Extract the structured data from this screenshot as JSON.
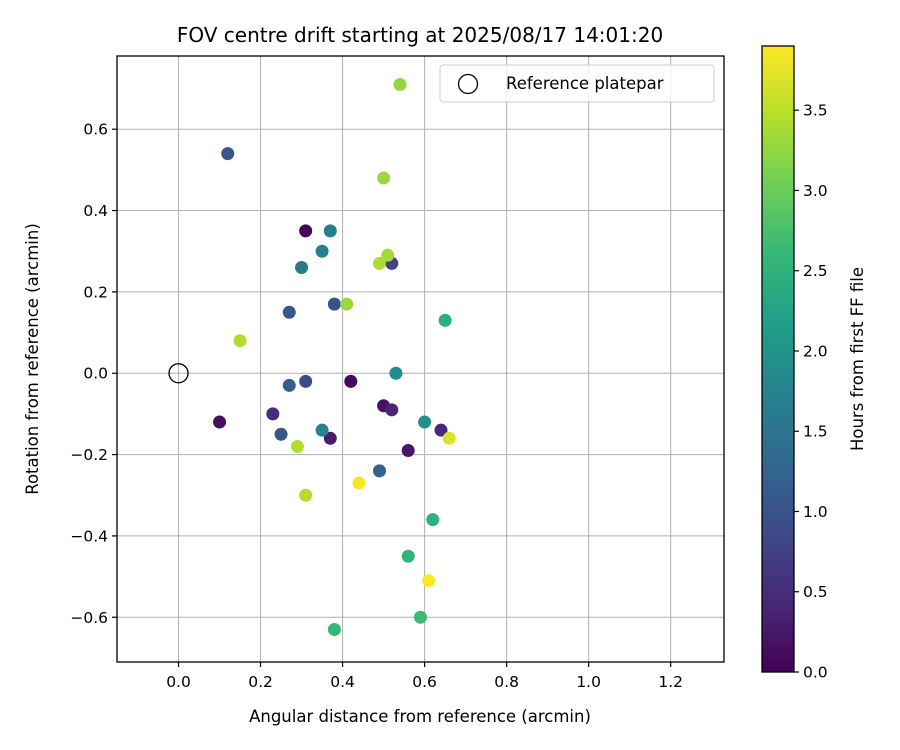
{
  "chart_data": {
    "type": "scatter",
    "title": "FOV centre drift starting at 2025/08/17 14:01:20",
    "xlabel": "Angular distance from reference (arcmin)",
    "ylabel": "Rotation from reference (arcmin)",
    "xlim": [
      -0.15,
      1.33
    ],
    "ylim": [
      -0.71,
      0.78
    ],
    "x_ticks": [
      0.0,
      0.2,
      0.4,
      0.6,
      0.8,
      1.0,
      1.2
    ],
    "x_tick_labels": [
      "0.0",
      "0.2",
      "0.4",
      "0.6",
      "0.8",
      "1.0",
      "1.2"
    ],
    "y_ticks": [
      -0.6,
      -0.4,
      -0.2,
      0.0,
      0.2,
      0.4,
      0.6
    ],
    "y_tick_labels": [
      "−0.6",
      "−0.4",
      "−0.2",
      "0.0",
      "0.2",
      "0.4",
      "0.6"
    ],
    "grid": true,
    "legend": {
      "position": "upper-right",
      "entries": [
        "Reference platepar"
      ]
    },
    "reference_point": {
      "x": 0.0,
      "y": 0.0,
      "label": "Reference platepar"
    },
    "colorbar": {
      "label": "Hours from first FF file",
      "colormap": "viridis",
      "range": [
        0.0,
        3.9
      ],
      "ticks": [
        0.0,
        0.5,
        1.0,
        1.5,
        2.0,
        2.5,
        3.0,
        3.5
      ],
      "tick_labels": [
        "0.0",
        "0.5",
        "1.0",
        "1.5",
        "2.0",
        "2.5",
        "3.0",
        "3.5"
      ]
    },
    "points": [
      {
        "x": 0.31,
        "y": 0.35,
        "hours": 0.05
      },
      {
        "x": 0.42,
        "y": -0.02,
        "hours": 0.1
      },
      {
        "x": 0.1,
        "y": -0.12,
        "hours": 0.15
      },
      {
        "x": 0.5,
        "y": -0.08,
        "hours": 0.2
      },
      {
        "x": 0.56,
        "y": -0.19,
        "hours": 0.25
      },
      {
        "x": 0.37,
        "y": -0.16,
        "hours": 0.3
      },
      {
        "x": 0.52,
        "y": -0.09,
        "hours": 0.4
      },
      {
        "x": 0.64,
        "y": -0.14,
        "hours": 0.45
      },
      {
        "x": 0.23,
        "y": -0.1,
        "hours": 0.5
      },
      {
        "x": 0.52,
        "y": 0.27,
        "hours": 0.8
      },
      {
        "x": 0.31,
        "y": -0.02,
        "hours": 0.9
      },
      {
        "x": 0.38,
        "y": 0.17,
        "hours": 0.95
      },
      {
        "x": 0.12,
        "y": 0.54,
        "hours": 1.0
      },
      {
        "x": 0.25,
        "y": -0.15,
        "hours": 1.05
      },
      {
        "x": 0.27,
        "y": 0.15,
        "hours": 1.1
      },
      {
        "x": 0.27,
        "y": -0.03,
        "hours": 1.15
      },
      {
        "x": 0.49,
        "y": -0.24,
        "hours": 1.2
      },
      {
        "x": 0.3,
        "y": 0.26,
        "hours": 1.6
      },
      {
        "x": 0.37,
        "y": 0.35,
        "hours": 1.65
      },
      {
        "x": 0.35,
        "y": 0.3,
        "hours": 1.7
      },
      {
        "x": 0.35,
        "y": -0.14,
        "hours": 1.75
      },
      {
        "x": 0.53,
        "y": 0.0,
        "hours": 1.85
      },
      {
        "x": 0.6,
        "y": -0.12,
        "hours": 1.95
      },
      {
        "x": 0.65,
        "y": 0.13,
        "hours": 2.45
      },
      {
        "x": 0.62,
        "y": -0.36,
        "hours": 2.5
      },
      {
        "x": 0.56,
        "y": -0.45,
        "hours": 2.55
      },
      {
        "x": 0.38,
        "y": -0.63,
        "hours": 2.6
      },
      {
        "x": 0.59,
        "y": -0.6,
        "hours": 2.65
      },
      {
        "x": 0.54,
        "y": 0.71,
        "hours": 3.25
      },
      {
        "x": 0.5,
        "y": 0.48,
        "hours": 3.3
      },
      {
        "x": 0.51,
        "y": 0.29,
        "hours": 3.35
      },
      {
        "x": 0.49,
        "y": 0.27,
        "hours": 3.4
      },
      {
        "x": 0.41,
        "y": 0.17,
        "hours": 3.3
      },
      {
        "x": 0.15,
        "y": 0.08,
        "hours": 3.45
      },
      {
        "x": 0.29,
        "y": -0.18,
        "hours": 3.45
      },
      {
        "x": 0.31,
        "y": -0.3,
        "hours": 3.45
      },
      {
        "x": 0.66,
        "y": -0.16,
        "hours": 3.7
      },
      {
        "x": 0.44,
        "y": -0.27,
        "hours": 3.85
      },
      {
        "x": 0.61,
        "y": -0.51,
        "hours": 3.9
      }
    ]
  }
}
